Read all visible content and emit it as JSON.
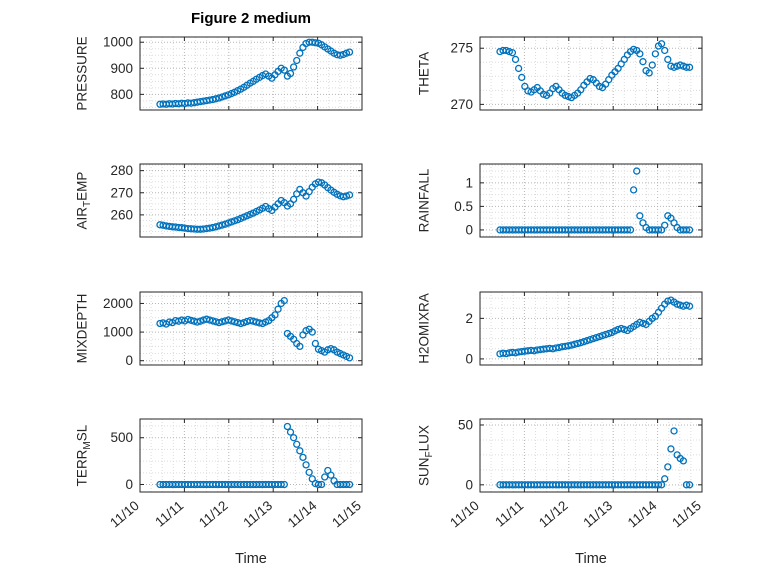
{
  "title": "Figure 2 medium",
  "xlabel": "Time",
  "marker_color": "#0072BD",
  "text_color": "#262626",
  "background": "#FFFFFF",
  "chart_data": {
    "type": "scatter",
    "grid": true,
    "layout": "4 rows x 2 columns, shared time axis, x tick labels on bottom row only",
    "xlim": [
      0,
      5
    ],
    "x_tick_labels": [
      "11/10",
      "11/11",
      "11/12",
      "11/13",
      "11/14",
      "11/15"
    ],
    "x_days": [
      0.45,
      0.52,
      0.59,
      0.66,
      0.73,
      0.8,
      0.87,
      0.94,
      1.01,
      1.08,
      1.15,
      1.22,
      1.29,
      1.36,
      1.43,
      1.5,
      1.57,
      1.64,
      1.71,
      1.78,
      1.85,
      1.92,
      1.99,
      2.06,
      2.13,
      2.2,
      2.27,
      2.34,
      2.41,
      2.48,
      2.55,
      2.62,
      2.69,
      2.76,
      2.83,
      2.9,
      2.97,
      3.04,
      3.11,
      3.18,
      3.25,
      3.32,
      3.39,
      3.46,
      3.53,
      3.6,
      3.67,
      3.74,
      3.81,
      3.88,
      3.95,
      4.02,
      4.09,
      4.16,
      4.23,
      4.3,
      4.37,
      4.44,
      4.51,
      4.58,
      4.65,
      4.72
    ],
    "subplots": [
      {
        "name": "PRESSURE",
        "ylabel_segments": [
          {
            "t": "PRESSURE"
          }
        ],
        "yticks": [
          800,
          900,
          1000
        ],
        "ytick_labels": [
          "800",
          "900",
          "1000"
        ],
        "ylim": [
          740,
          1020
        ],
        "y": [
          762,
          763,
          762,
          764,
          763,
          765,
          764,
          766,
          765,
          767,
          766,
          768,
          770,
          772,
          774,
          776,
          778,
          780,
          783,
          786,
          790,
          794,
          798,
          803,
          808,
          814,
          820,
          827,
          835,
          843,
          850,
          858,
          865,
          872,
          878,
          870,
          862,
          875,
          888,
          900,
          893,
          870,
          880,
          905,
          930,
          958,
          980,
          995,
          1000,
          1000,
          998,
          996,
          990,
          982,
          974,
          966,
          958,
          952,
          950,
          953,
          958,
          962
        ]
      },
      {
        "name": "THETA",
        "ylabel_segments": [
          {
            "t": "THETA"
          }
        ],
        "yticks": [
          270,
          275
        ],
        "ytick_labels": [
          "270",
          "275"
        ],
        "ylim": [
          269.5,
          276
        ],
        "y": [
          274.7,
          274.8,
          274.8,
          274.7,
          274.6,
          274.0,
          273.2,
          272.4,
          271.6,
          271.2,
          271.1,
          271.3,
          271.5,
          271.2,
          270.9,
          270.8,
          271.0,
          271.4,
          271.6,
          271.3,
          271.0,
          270.8,
          270.7,
          270.6,
          270.8,
          271.0,
          271.3,
          271.7,
          272.0,
          272.3,
          272.2,
          271.9,
          271.6,
          271.5,
          271.8,
          272.2,
          272.6,
          272.9,
          273.2,
          273.6,
          274.0,
          274.4,
          274.7,
          274.9,
          274.8,
          274.5,
          273.8,
          273.0,
          272.8,
          273.5,
          274.5,
          275.2,
          275.4,
          274.8,
          274.0,
          273.4,
          273.3,
          273.4,
          273.5,
          273.4,
          273.3,
          273.3
        ]
      },
      {
        "name": "AIR_TEMP",
        "ylabel_segments": [
          {
            "t": "AIR"
          },
          {
            "t": "T",
            "sub": true
          },
          {
            "t": "EMP"
          }
        ],
        "yticks": [
          260,
          270,
          280
        ],
        "ytick_labels": [
          "260",
          "270",
          "280"
        ],
        "ylim": [
          250,
          283
        ],
        "y": [
          255.5,
          255.3,
          255.0,
          254.8,
          254.6,
          254.5,
          254.3,
          254.2,
          254.0,
          253.8,
          253.7,
          253.6,
          253.5,
          253.5,
          253.6,
          253.8,
          254.0,
          254.3,
          254.6,
          255.0,
          255.4,
          255.8,
          256.3,
          256.8,
          257.3,
          257.8,
          258.4,
          259.0,
          259.6,
          260.2,
          260.8,
          261.5,
          262.2,
          263.0,
          263.8,
          262.8,
          262.0,
          263.5,
          265.0,
          266.5,
          265.5,
          264.0,
          265.0,
          267.0,
          269.5,
          271.5,
          270.0,
          268.5,
          270.5,
          272.5,
          274.0,
          274.8,
          274.5,
          273.5,
          272.3,
          271.2,
          270.2,
          269.3,
          268.6,
          268.2,
          268.5,
          269.0
        ]
      },
      {
        "name": "RAINFALL",
        "ylabel_segments": [
          {
            "t": "RAINFALL"
          }
        ],
        "yticks": [
          0,
          0.5,
          1
        ],
        "ytick_labels": [
          "0",
          "0.5",
          "1"
        ],
        "ylim": [
          -0.15,
          1.4
        ],
        "y": [
          0,
          0,
          0,
          0,
          0,
          0,
          0,
          0,
          0,
          0,
          0,
          0,
          0,
          0,
          0,
          0,
          0,
          0,
          0,
          0,
          0,
          0,
          0,
          0,
          0,
          0,
          0,
          0,
          0,
          0,
          0,
          0,
          0,
          0,
          0,
          0,
          0,
          0,
          0,
          0,
          0,
          0,
          0,
          0.85,
          1.25,
          0.3,
          0.15,
          0.05,
          0,
          0,
          0,
          0,
          0,
          0.1,
          0.3,
          0.25,
          0.15,
          0.05,
          0,
          0,
          0,
          0
        ]
      },
      {
        "name": "MIXDEPTH",
        "ylabel_segments": [
          {
            "t": "MIXDEPTH"
          }
        ],
        "yticks": [
          0,
          1000,
          2000
        ],
        "ytick_labels": [
          "0",
          "1000",
          "2000"
        ],
        "ylim": [
          -150,
          2400
        ],
        "y": [
          1300,
          1320,
          1280,
          1350,
          1330,
          1400,
          1380,
          1420,
          1390,
          1440,
          1410,
          1380,
          1350,
          1380,
          1420,
          1450,
          1420,
          1390,
          1360,
          1330,
          1360,
          1390,
          1420,
          1390,
          1360,
          1330,
          1300,
          1330,
          1370,
          1400,
          1380,
          1350,
          1320,
          1300,
          1350,
          1400,
          1500,
          1600,
          1800,
          2000,
          2100,
          950,
          850,
          750,
          600,
          500,
          900,
          1050,
          1100,
          1000,
          600,
          400,
          350,
          300,
          380,
          420,
          380,
          300,
          250,
          200,
          150,
          100
        ]
      },
      {
        "name": "H2OMIXRA",
        "ylabel_segments": [
          {
            "t": "H2OMIXRA"
          }
        ],
        "yticks": [
          0,
          2
        ],
        "ytick_labels": [
          "0",
          "2"
        ],
        "ylim": [
          -0.3,
          3.3
        ],
        "y": [
          0.25,
          0.28,
          0.26,
          0.3,
          0.32,
          0.3,
          0.34,
          0.36,
          0.38,
          0.4,
          0.42,
          0.4,
          0.44,
          0.46,
          0.48,
          0.5,
          0.52,
          0.5,
          0.54,
          0.56,
          0.6,
          0.62,
          0.65,
          0.68,
          0.72,
          0.76,
          0.8,
          0.85,
          0.9,
          0.95,
          1.0,
          1.05,
          1.1,
          1.15,
          1.2,
          1.25,
          1.3,
          1.38,
          1.45,
          1.5,
          1.45,
          1.4,
          1.5,
          1.6,
          1.7,
          1.8,
          1.75,
          1.7,
          1.85,
          2.0,
          2.1,
          2.3,
          2.5,
          2.7,
          2.85,
          2.9,
          2.8,
          2.7,
          2.65,
          2.6,
          2.65,
          2.6
        ]
      },
      {
        "name": "TERR_MSL",
        "ylabel_segments": [
          {
            "t": "TERR"
          },
          {
            "t": "M",
            "sub": true
          },
          {
            "t": "SL"
          }
        ],
        "yticks": [
          0,
          500
        ],
        "ytick_labels": [
          "0",
          "500"
        ],
        "ylim": [
          -80,
          700
        ],
        "y": [
          0,
          0,
          0,
          0,
          0,
          0,
          0,
          0,
          0,
          0,
          0,
          0,
          0,
          0,
          0,
          0,
          0,
          0,
          0,
          0,
          0,
          0,
          0,
          0,
          0,
          0,
          0,
          0,
          0,
          0,
          0,
          0,
          0,
          0,
          0,
          0,
          0,
          0,
          0,
          0,
          0,
          620,
          560,
          500,
          430,
          360,
          290,
          210,
          130,
          60,
          10,
          0,
          0,
          80,
          150,
          100,
          40,
          0,
          0,
          0,
          0,
          0
        ]
      },
      {
        "name": "SUN_FLUX",
        "ylabel_segments": [
          {
            "t": "SUN"
          },
          {
            "t": "F",
            "sub": true
          },
          {
            "t": "LUX"
          }
        ],
        "yticks": [
          0,
          50
        ],
        "ytick_labels": [
          "0",
          "50"
        ],
        "ylim": [
          -6,
          55
        ],
        "y": [
          0,
          0,
          0,
          0,
          0,
          0,
          0,
          0,
          0,
          0,
          0,
          0,
          0,
          0,
          0,
          0,
          0,
          0,
          0,
          0,
          0,
          0,
          0,
          0,
          0,
          0,
          0,
          0,
          0,
          0,
          0,
          0,
          0,
          0,
          0,
          0,
          0,
          0,
          0,
          0,
          0,
          0,
          0,
          0,
          0,
          0,
          0,
          0,
          0,
          0,
          0,
          0,
          0,
          5,
          15,
          30,
          45,
          25,
          22,
          20,
          0,
          0
        ]
      }
    ]
  }
}
